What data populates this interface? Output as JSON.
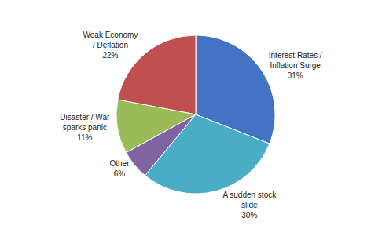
{
  "chart_data": {
    "type": "pie",
    "categories": [
      "Interest Rates /\nInflation Surge",
      "Weak Economy\n/ Deflation",
      "Disaster / War\nsparks panic",
      "Other",
      "A sudden stock\nslide"
    ],
    "values": [
      31,
      22,
      11,
      6,
      30
    ],
    "value_labels": [
      "31%",
      "22%",
      "11%",
      "6%",
      "30%"
    ],
    "colors": [
      "#4472C4",
      "#C0504D",
      "#9BBB59",
      "#8064A2",
      "#4BACC6"
    ],
    "data_labels": true
  }
}
